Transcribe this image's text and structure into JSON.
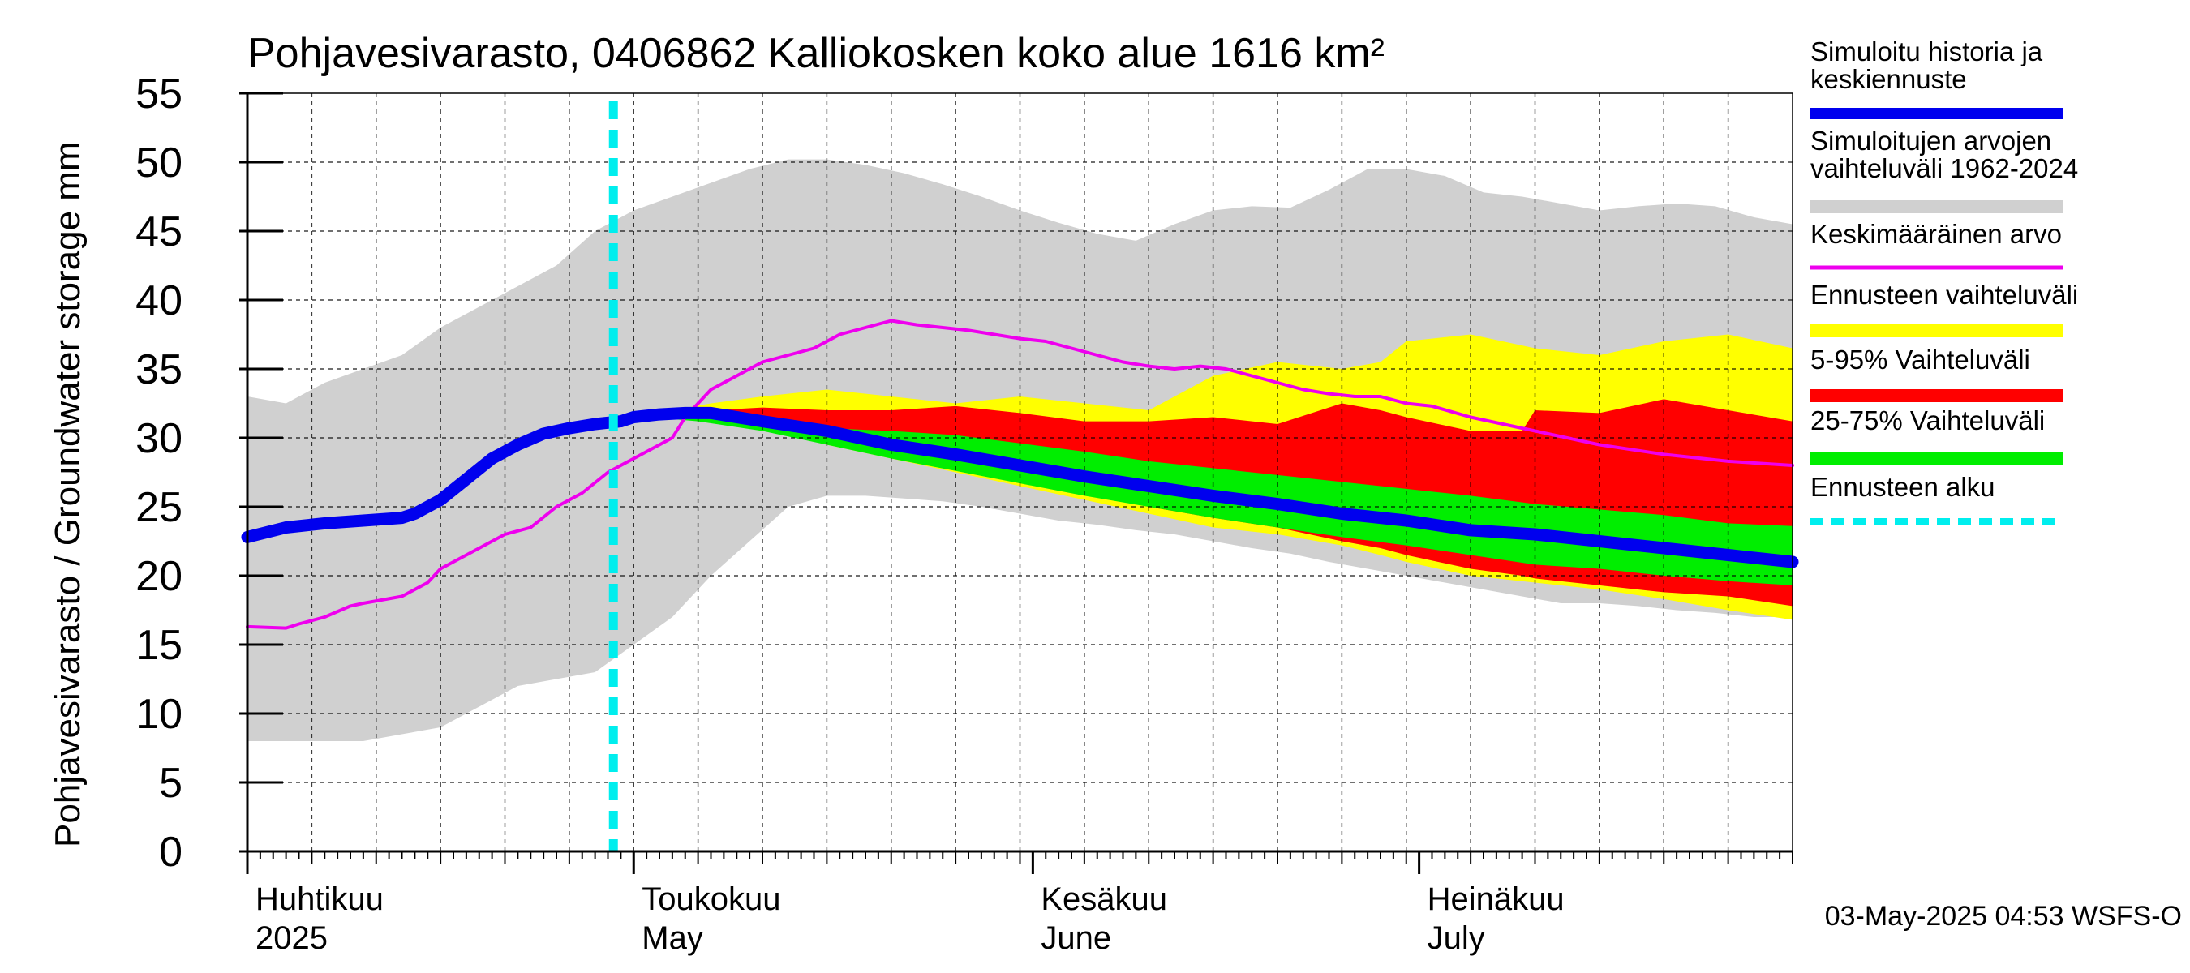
{
  "chart_data": {
    "type": "area",
    "title": "Pohjavesivarasto, 0406862 Kalliokosken koko alue 1616 km²",
    "ylabel": "Pohjavesivarasto / Groundwater storage   mm",
    "ylim": [
      0,
      55
    ],
    "yticks": [
      0,
      5,
      10,
      15,
      20,
      25,
      30,
      35,
      40,
      45,
      50,
      55
    ],
    "xlim_days": [
      0,
      120
    ],
    "grid": true,
    "forecast_start_day": 30,
    "month_labels": [
      {
        "day": 0,
        "fi": "Huhtikuu",
        "en": "2025"
      },
      {
        "day": 30,
        "fi": "Toukokuu",
        "en": "May"
      },
      {
        "day": 61,
        "fi": "Kesäkuu",
        "en": "June"
      },
      {
        "day": 91,
        "fi": "Heinäkuu",
        "en": "July"
      }
    ],
    "timestamp": "03-May-2025 04:53 WSFS-O",
    "legend": [
      {
        "label": "Simuloitu historia ja\nkeskiennuste",
        "color": "#0000ee",
        "style": "thick"
      },
      {
        "label": "Simuloitujen arvojen\nvaihteluväli 1962-2024",
        "color": "#d0d0d0",
        "style": "band"
      },
      {
        "label": "Keskimääräinen arvo",
        "color": "#ee00ee",
        "style": "line"
      },
      {
        "label": "Ennusteen vaihteluväli",
        "color": "#ffff00",
        "style": "band"
      },
      {
        "label": "5-95% Vaihteluväli",
        "color": "#ff0000",
        "style": "band"
      },
      {
        "label": "25-75% Vaihteluväli",
        "color": "#00ee00",
        "style": "band"
      },
      {
        "label": "Ennusteen alku",
        "color": "#00eeee",
        "style": "dashed"
      }
    ],
    "series": [
      {
        "name": "Simuloitujen arvojen vaihteluväli 1962-2024",
        "type": "band",
        "x": [
          0,
          3,
          6,
          9,
          12,
          15,
          18,
          21,
          24,
          27,
          30,
          33,
          36,
          39,
          42,
          45,
          48,
          51,
          54,
          57,
          60,
          63,
          66,
          69,
          72,
          75,
          78,
          81,
          84,
          87,
          90,
          93,
          96,
          99,
          102,
          105,
          108,
          111,
          114,
          117,
          120
        ],
        "low": [
          8,
          8,
          8,
          8,
          8.5,
          9,
          10.5,
          12,
          12.5,
          13,
          15,
          17,
          20,
          22.5,
          25,
          25.8,
          25.8,
          25.6,
          25.4,
          25,
          24.5,
          24,
          23.7,
          23.3,
          23,
          22.5,
          22,
          21.6,
          21,
          20.5,
          20,
          19.5,
          19,
          18.5,
          18,
          18,
          17.8,
          17.5,
          17.3,
          17,
          17
        ],
        "high": [
          33,
          32.5,
          34,
          35,
          36,
          38,
          39.5,
          41,
          42.5,
          45,
          46.5,
          47.5,
          48.5,
          49.5,
          50.2,
          50.2,
          49.8,
          49.2,
          48.4,
          47.5,
          46.5,
          45.6,
          44.8,
          44.3,
          45.5,
          46.5,
          46.8,
          46.7,
          48,
          49.5,
          49.5,
          49,
          47.8,
          47.5,
          47,
          46.5,
          46.8,
          47,
          46.8,
          46,
          45.5
        ]
      },
      {
        "name": "Ennusteen vaihteluväli",
        "type": "band",
        "x": [
          30,
          33,
          36,
          40,
          45,
          50,
          55,
          60,
          65,
          70,
          75,
          80,
          85,
          88,
          90,
          95,
          100,
          105,
          110,
          115,
          120
        ],
        "low": [
          31.5,
          31.8,
          31.5,
          30.8,
          29.5,
          28.5,
          27.5,
          26.5,
          25.5,
          24.5,
          23.5,
          23,
          22.2,
          21.5,
          21,
          20,
          19.5,
          19,
          18.3,
          17.5,
          16.8
        ],
        "high": [
          31.6,
          32,
          32.5,
          33,
          33.5,
          33,
          32.5,
          33,
          32.5,
          32,
          34.5,
          35.5,
          35,
          35.5,
          37,
          37.5,
          36.5,
          36,
          37,
          37.5,
          36.5
        ]
      },
      {
        "name": "5-95% Vaihteluväli",
        "type": "band",
        "x": [
          30,
          33,
          36,
          40,
          45,
          50,
          55,
          60,
          65,
          70,
          75,
          80,
          85,
          88,
          90,
          95,
          99,
          100,
          105,
          110,
          115,
          120
        ],
        "low": [
          31.5,
          31.8,
          31.5,
          30.8,
          29.8,
          28.8,
          27.8,
          27,
          26,
          25,
          24.2,
          23.5,
          22.5,
          22,
          21.5,
          20.5,
          20,
          19.8,
          19.3,
          18.8,
          18.5,
          17.8
        ],
        "high": [
          31.6,
          31.9,
          32,
          32.2,
          32,
          32,
          32.3,
          31.8,
          31.2,
          31.2,
          31.5,
          31,
          32.5,
          32,
          31.5,
          30.5,
          30.5,
          32,
          31.8,
          32.8,
          32,
          31.2
        ]
      },
      {
        "name": "25-75% Vaihteluväli",
        "type": "band",
        "x": [
          30,
          35,
          40,
          45,
          50,
          55,
          60,
          65,
          70,
          75,
          80,
          85,
          90,
          95,
          100,
          105,
          110,
          115,
          120
        ],
        "low": [
          31.6,
          31.2,
          30.5,
          29.5,
          28.5,
          27.6,
          26.7,
          25.8,
          25,
          24.2,
          23.5,
          22.8,
          22.2,
          21.5,
          20.8,
          20.5,
          20,
          19.6,
          19.3
        ],
        "high": [
          31.8,
          31.8,
          31.3,
          30.7,
          30.5,
          30.2,
          29.6,
          29,
          28.3,
          27.8,
          27.3,
          26.8,
          26.3,
          25.8,
          25.2,
          24.8,
          24.4,
          23.8,
          23.6
        ]
      },
      {
        "name": "Keskimääräinen arvo",
        "type": "line",
        "x": [
          0,
          3,
          4,
          6,
          8,
          9,
          12,
          14,
          15,
          16,
          18,
          20,
          22,
          24,
          26,
          28,
          30,
          32,
          33,
          34,
          36,
          38,
          40,
          42,
          44,
          46,
          48,
          50,
          52,
          54,
          56,
          58,
          60,
          62,
          64,
          66,
          68,
          70,
          72,
          74,
          76,
          78,
          80,
          82,
          84,
          86,
          88,
          90,
          92,
          95,
          100,
          105,
          110,
          115,
          120
        ],
        "y": [
          16.3,
          16.2,
          16.5,
          17,
          17.8,
          18,
          18.5,
          19.5,
          20.5,
          21,
          22,
          23,
          23.5,
          25,
          26,
          27.5,
          28.5,
          29.5,
          30,
          31.5,
          33.5,
          34.5,
          35.5,
          36,
          36.5,
          37.5,
          38,
          38.5,
          38.2,
          38,
          37.8,
          37.5,
          37.2,
          37,
          36.5,
          36,
          35.5,
          35.2,
          35,
          35.2,
          35,
          34.5,
          34,
          33.5,
          33.2,
          33,
          33,
          32.5,
          32.3,
          31.5,
          30.5,
          29.5,
          28.8,
          28.3,
          28
        ]
      },
      {
        "name": "Simuloitu historia ja keskiennuste",
        "type": "line",
        "x": [
          0,
          3,
          6,
          9,
          12,
          13,
          15,
          17,
          19,
          21,
          23,
          25,
          27,
          29,
          30,
          32,
          34,
          36,
          40,
          45,
          50,
          55,
          60,
          65,
          70,
          75,
          80,
          85,
          90,
          95,
          100,
          105,
          110,
          115,
          120
        ],
        "y": [
          22.8,
          23.5,
          23.8,
          24,
          24.2,
          24.5,
          25.5,
          27,
          28.5,
          29.5,
          30.3,
          30.7,
          31,
          31.2,
          31.5,
          31.7,
          31.8,
          31.8,
          31.2,
          30.5,
          29.5,
          28.8,
          28.0,
          27.2,
          26.5,
          25.8,
          25.2,
          24.5,
          24.0,
          23.3,
          23.0,
          22.5,
          22.0,
          21.5,
          21.0
        ]
      }
    ]
  }
}
